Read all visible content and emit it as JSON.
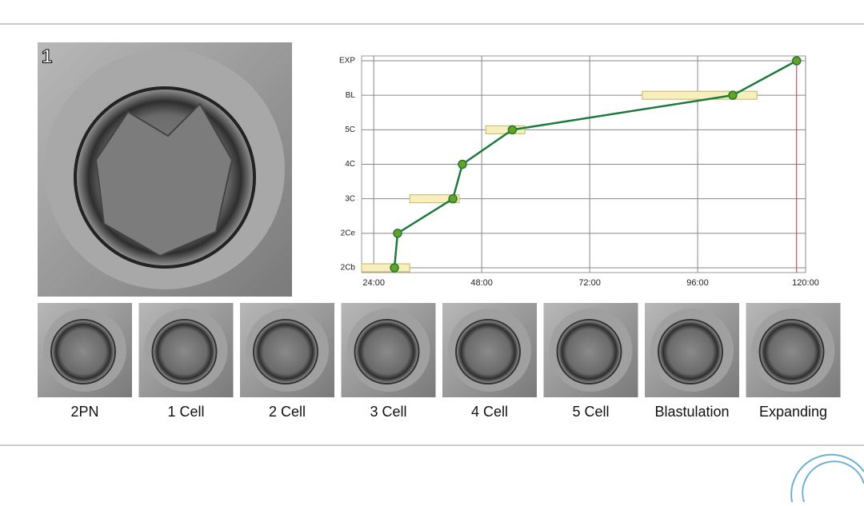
{
  "label_1": "1",
  "stage_labels": [
    "2PN",
    "1 Cell",
    "2 Cell",
    "3 Cell",
    "4 Cell",
    "5 Cell",
    "Blastulation",
    "Expanding"
  ],
  "chart_data": {
    "type": "line",
    "categories": [
      "2Cb",
      "2Ce",
      "3C",
      "4C",
      "5C",
      "BL",
      "EXP"
    ],
    "xlim": [
      21.3,
      120
    ],
    "xticks": [
      {
        "value": 24,
        "label": "24:00"
      },
      {
        "value": 48,
        "label": "48:00"
      },
      {
        "value": 72,
        "label": "72:00"
      },
      {
        "value": 96,
        "label": "96:00"
      },
      {
        "value": 120,
        "label": "120:00"
      }
    ],
    "grid": true,
    "series": [
      {
        "color": "#1e7b3c",
        "marker_color": "#6aa121",
        "x": [
          28.6,
          29.3,
          41.6,
          43.7,
          54.8,
          103.8,
          118.0
        ],
        "values": [
          "2Cb",
          "2Ce",
          "3C",
          "4C",
          "5C",
          "BL",
          "EXP"
        ]
      }
    ],
    "ranges": [
      {
        "stage": "2Cb",
        "values": [
          21.3,
          32.0
        ]
      },
      {
        "stage": "3C",
        "values": [
          32.0,
          43.0
        ]
      },
      {
        "stage": "5C",
        "values": [
          48.9,
          57.6
        ]
      },
      {
        "stage": "BL",
        "values": [
          83.7,
          109.2
        ]
      }
    ]
  }
}
